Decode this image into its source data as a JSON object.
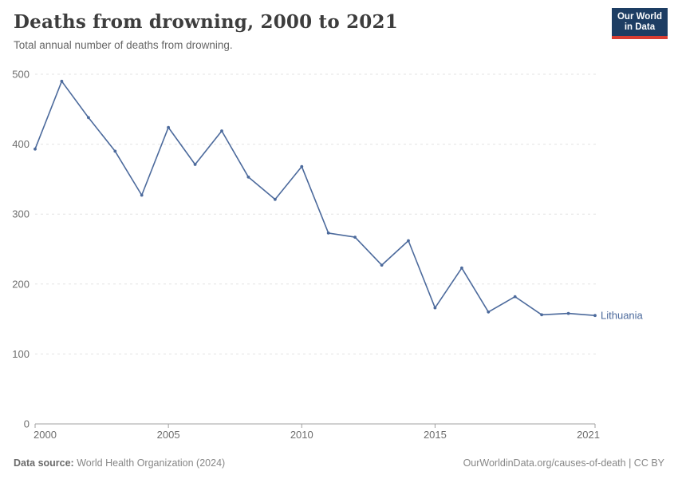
{
  "header": {
    "title": "Deaths from drowning, 2000 to 2021",
    "subtitle": "Total annual number of deaths from drowning.",
    "logo": {
      "line1": "Our World",
      "line2": "in Data"
    }
  },
  "footer": {
    "source_label": "Data source:",
    "source_text": " World Health Organization (2024)",
    "attribution": "OurWorldinData.org/causes-of-death | CC BY"
  },
  "colors": {
    "line": "#4c6a9c",
    "title": "#3d3d3d",
    "subtitle": "#666666",
    "axis_text": "#6e6e6e",
    "gridline": "#e3e3e3",
    "axis_line": "#a0a0a0",
    "logo_bg": "#1d3d63",
    "logo_accent": "#d93d32"
  },
  "chart_data": {
    "type": "line",
    "title": "Deaths from drowning, 2000 to 2021",
    "xlabel": "",
    "ylabel": "",
    "xlim": [
      2000,
      2021
    ],
    "ylim": [
      0,
      500
    ],
    "xticks": [
      2000,
      2005,
      2010,
      2015,
      2021
    ],
    "yticks": [
      0,
      100,
      200,
      300,
      400,
      500
    ],
    "grid": "dashed-horizontal",
    "legend": "end-of-line-label",
    "series": [
      {
        "name": "Lithuania",
        "x": [
          2000,
          2001,
          2002,
          2003,
          2004,
          2005,
          2006,
          2007,
          2008,
          2009,
          2010,
          2011,
          2012,
          2013,
          2014,
          2015,
          2016,
          2017,
          2018,
          2019,
          2020,
          2021
        ],
        "values": [
          393,
          490,
          438,
          390,
          327,
          424,
          371,
          419,
          353,
          321,
          368,
          273,
          267,
          227,
          262,
          166,
          223,
          160,
          182,
          156,
          158,
          155
        ]
      }
    ]
  }
}
